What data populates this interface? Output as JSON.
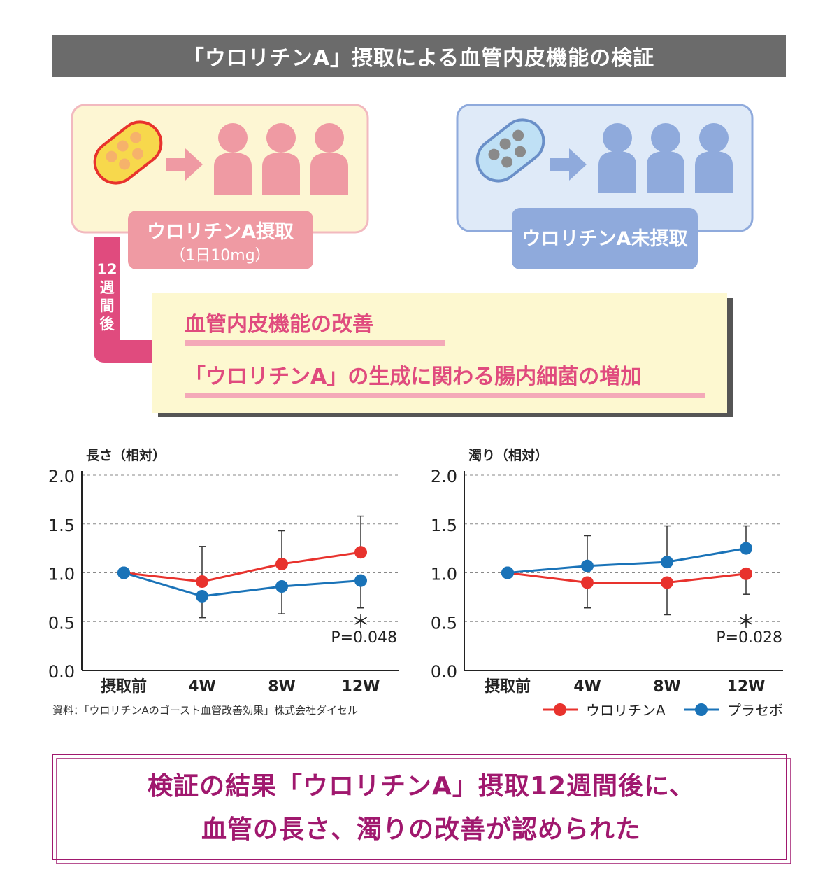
{
  "title": "「ウロリチンA」摂取による血管内皮機能の検証",
  "groups": {
    "intake_label": "ウロリチンA摂取",
    "intake_dose": "（1日10mg）",
    "no_intake_label": "ウロリチンA未摂取",
    "period_label": [
      "12",
      "週",
      "間",
      "後"
    ]
  },
  "findings": [
    "血管内皮機能の改善",
    "「ウロリチンA」の生成に関わる腸内細菌の増加"
  ],
  "colors": {
    "urolithin": "#e8322d",
    "placebo": "#1a73b8",
    "pink": "#ef9aa3",
    "blue": "#8faadc",
    "magenta": "#a0186e",
    "arrow": "#e04b7e"
  },
  "chart_data": [
    {
      "type": "line",
      "ylabel": "長さ（相対）",
      "categories": [
        "摂取前",
        "4W",
        "8W",
        "12W"
      ],
      "ylim": [
        0,
        2.0
      ],
      "yticks": [
        "0.0",
        "0.5",
        "1.0",
        "1.5",
        "2.0"
      ],
      "series": [
        {
          "name": "ウロリチンA",
          "values": [
            1.0,
            0.91,
            1.09,
            1.21
          ],
          "err_high": [
            null,
            1.27,
            1.43,
            1.58
          ]
        },
        {
          "name": "プラセボ",
          "values": [
            1.0,
            0.76,
            0.86,
            0.92
          ],
          "err_low": [
            null,
            0.54,
            0.58,
            0.64
          ]
        }
      ],
      "annotation": {
        "mark": "＊",
        "text": "P=0.048"
      }
    },
    {
      "type": "line",
      "ylabel": "濁り（相対）",
      "categories": [
        "摂取前",
        "4W",
        "8W",
        "12W"
      ],
      "ylim": [
        0,
        2.0
      ],
      "yticks": [
        "0.0",
        "0.5",
        "1.0",
        "1.5",
        "2.0"
      ],
      "series": [
        {
          "name": "ウロリチンA",
          "values": [
            1.0,
            0.9,
            0.9,
            0.99
          ],
          "err_low": [
            null,
            0.64,
            0.57,
            0.78
          ]
        },
        {
          "name": "プラセボ",
          "values": [
            1.0,
            1.07,
            1.11,
            1.25
          ],
          "err_high": [
            null,
            1.38,
            1.48,
            1.48
          ]
        }
      ],
      "annotation": {
        "mark": "＊",
        "text": "P=0.028"
      }
    }
  ],
  "legend": [
    "ウロリチンA",
    "プラセボ"
  ],
  "source": "資料：「ウロリチンAのゴースト血管改善効果」株式会社ダイセル",
  "conclusion": [
    "検証の結果「ウロリチンA」摂取12週間後に、",
    "血管の長さ、濁りの改善が認められた"
  ]
}
